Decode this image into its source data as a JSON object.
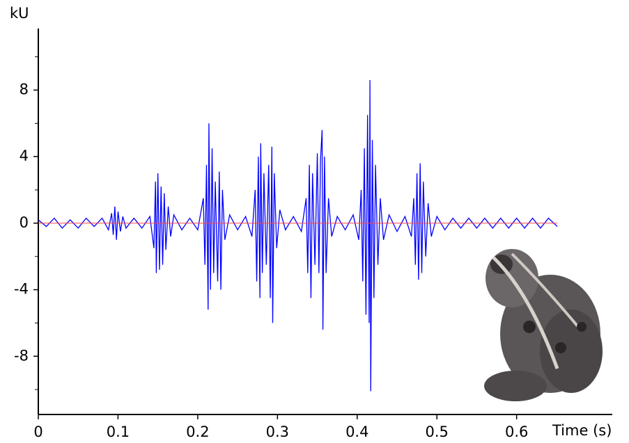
{
  "chart_data": {
    "type": "line",
    "y_label": "kU",
    "x_label": "Time (s)",
    "xlim": [
      0,
      0.72
    ],
    "xticks": [
      0,
      0.1,
      0.2,
      0.3,
      0.4,
      0.5,
      0.6
    ],
    "ylim": [
      -11.5,
      11.7
    ],
    "yticks": [
      -8,
      -4,
      0,
      4,
      8
    ],
    "yminorticks": [
      -10,
      -6,
      -2,
      2,
      6,
      10
    ],
    "zero_line_color": "#ff4040",
    "series": [
      {
        "color": "#0000ff",
        "x": [
          0,
          0.01,
          0.02,
          0.03,
          0.04,
          0.05,
          0.06,
          0.07,
          0.08,
          0.088,
          0.092,
          0.094,
          0.096,
          0.098,
          0.1,
          0.103,
          0.106,
          0.11,
          0.12,
          0.13,
          0.14,
          0.145,
          0.147,
          0.148,
          0.15,
          0.152,
          0.154,
          0.156,
          0.158,
          0.16,
          0.163,
          0.166,
          0.17,
          0.18,
          0.19,
          0.2,
          0.207,
          0.209,
          0.211,
          0.213,
          0.214,
          0.216,
          0.218,
          0.22,
          0.222,
          0.225,
          0.227,
          0.229,
          0.231,
          0.234,
          0.24,
          0.25,
          0.26,
          0.268,
          0.272,
          0.274,
          0.276,
          0.278,
          0.279,
          0.281,
          0.283,
          0.286,
          0.289,
          0.291,
          0.293,
          0.294,
          0.296,
          0.299,
          0.303,
          0.31,
          0.32,
          0.33,
          0.336,
          0.338,
          0.34,
          0.342,
          0.344,
          0.347,
          0.35,
          0.352,
          0.354,
          0.356,
          0.357,
          0.359,
          0.361,
          0.364,
          0.368,
          0.375,
          0.385,
          0.395,
          0.402,
          0.405,
          0.407,
          0.409,
          0.411,
          0.413,
          0.415,
          0.416,
          0.417,
          0.419,
          0.421,
          0.423,
          0.426,
          0.429,
          0.433,
          0.44,
          0.45,
          0.46,
          0.468,
          0.471,
          0.473,
          0.475,
          0.477,
          0.479,
          0.481,
          0.483,
          0.486,
          0.489,
          0.493,
          0.5,
          0.51,
          0.52,
          0.53,
          0.54,
          0.55,
          0.56,
          0.57,
          0.58,
          0.59,
          0.6,
          0.61,
          0.62,
          0.63,
          0.64,
          0.651
        ],
        "values": [
          0.2,
          -0.2,
          0.3,
          -0.3,
          0.2,
          -0.3,
          0.3,
          -0.2,
          0.3,
          -0.4,
          0.6,
          -0.7,
          1.0,
          -1.0,
          0.7,
          -0.5,
          0.4,
          -0.3,
          0.3,
          -0.3,
          0.4,
          -1.5,
          2.5,
          -3.0,
          3.0,
          -2.8,
          2.2,
          -2.5,
          1.8,
          -1.6,
          1.0,
          -0.8,
          0.5,
          -0.4,
          0.3,
          -0.4,
          1.5,
          -2.5,
          3.5,
          -5.2,
          6.0,
          -4.0,
          4.5,
          -3.0,
          2.5,
          -3.5,
          3.1,
          -4.0,
          2.0,
          -1.0,
          0.5,
          -0.4,
          0.4,
          -0.8,
          2.0,
          -3.5,
          4.0,
          -4.5,
          4.8,
          -3.0,
          3.0,
          -2.5,
          3.5,
          -4.5,
          4.6,
          -6.0,
          3.0,
          -1.5,
          0.8,
          -0.4,
          0.4,
          -0.5,
          1.5,
          -3.0,
          3.5,
          -4.5,
          3.0,
          -2.5,
          4.2,
          -3.0,
          3.8,
          5.6,
          -6.4,
          4.0,
          -3.0,
          1.5,
          -0.8,
          0.4,
          -0.4,
          0.5,
          -1.0,
          2.0,
          -3.5,
          4.5,
          -5.5,
          6.5,
          -6.0,
          8.6,
          -10.1,
          5.0,
          -4.5,
          3.5,
          -2.5,
          1.5,
          -1.0,
          0.5,
          -0.5,
          0.4,
          -0.8,
          1.5,
          -2.5,
          3.0,
          -3.4,
          3.6,
          -3.0,
          2.5,
          -2.0,
          1.2,
          -0.8,
          0.4,
          -0.4,
          0.3,
          -0.3,
          0.3,
          -0.3,
          0.3,
          -0.3,
          0.3,
          -0.3,
          0.3,
          -0.3,
          0.3,
          -0.3,
          0.3,
          -0.2
        ]
      }
    ]
  }
}
